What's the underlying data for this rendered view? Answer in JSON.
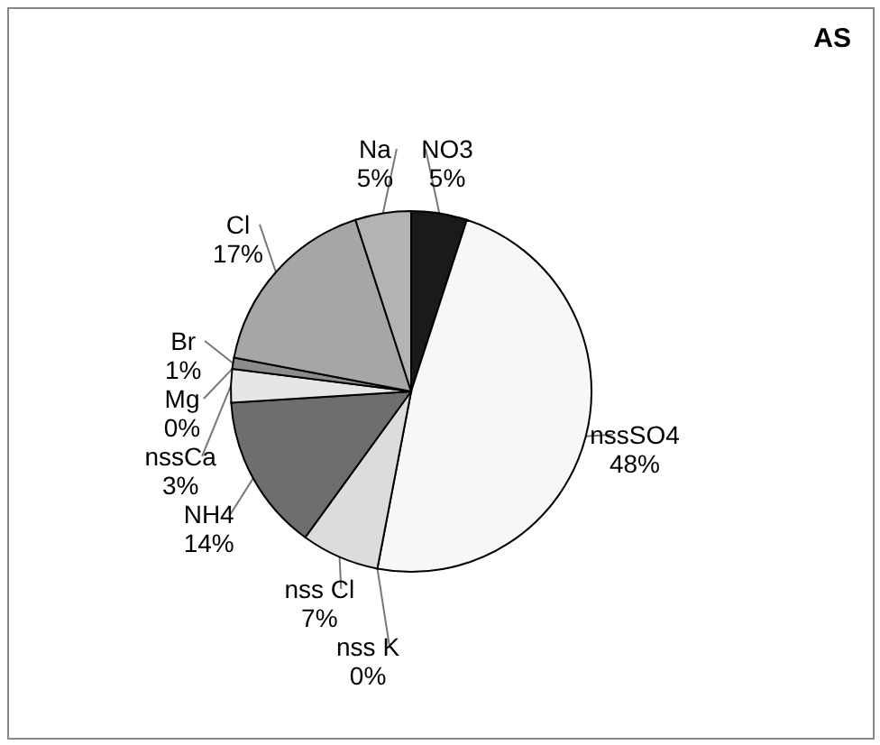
{
  "chart_data": {
    "type": "pie",
    "title": "AS",
    "categories": [
      "NO3",
      "nssSO4",
      "nss K",
      "nss Cl",
      "NH4",
      "nssCa",
      "Mg",
      "Br",
      "Cl",
      "Na"
    ],
    "values": [
      5,
      48,
      0,
      7,
      14,
      3,
      0,
      1,
      17,
      5
    ],
    "value_labels": [
      "5%",
      "48%",
      "0%",
      "7%",
      "14%",
      "3%",
      "0%",
      "1%",
      "17%",
      "5%"
    ],
    "colors": [
      "#1a1a1a",
      "#f7f7f7",
      "#ffffff",
      "#dcdcdc",
      "#6e6e6e",
      "#e6e6e6",
      "#bdbdbd",
      "#8c8c8c",
      "#a6a6a6",
      "#b3b3b3"
    ]
  }
}
